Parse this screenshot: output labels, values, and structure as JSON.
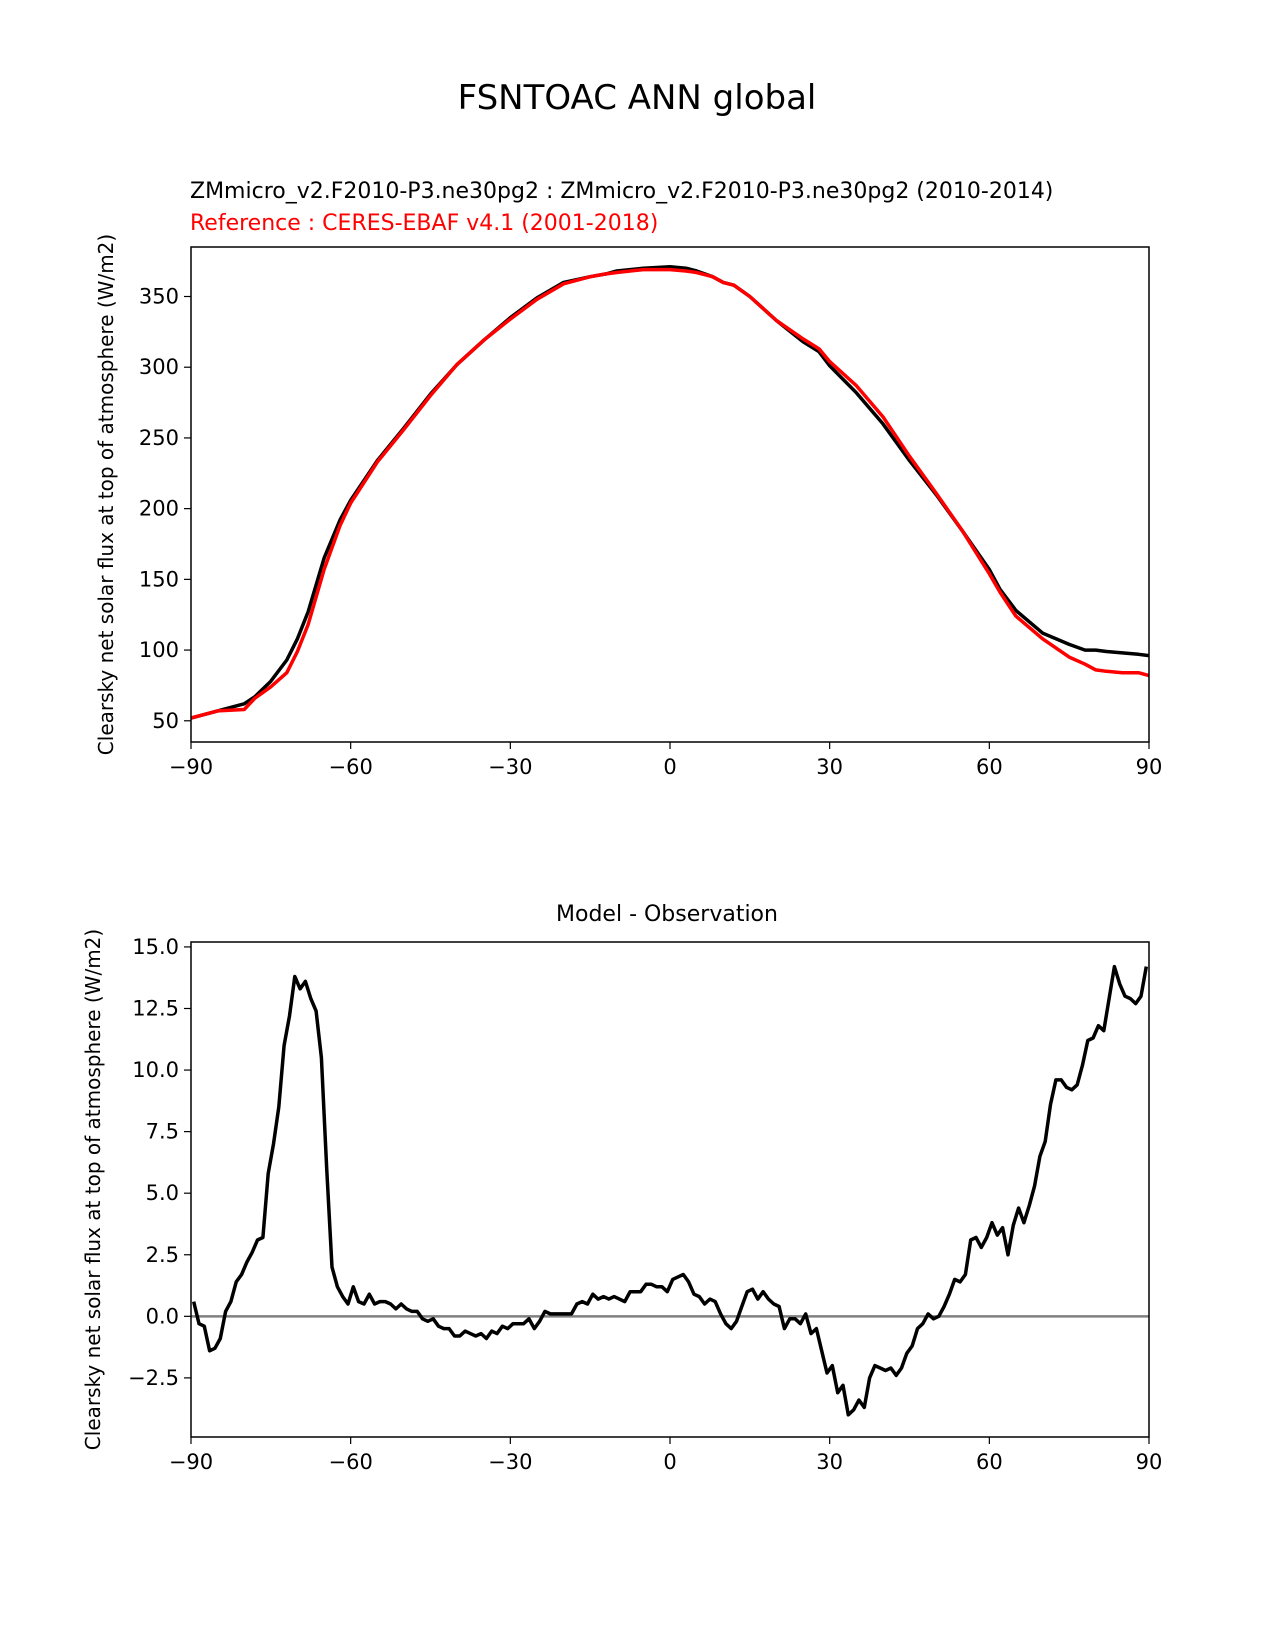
{
  "page_title": "FSNTOAC ANN global",
  "chart_data": [
    {
      "type": "line",
      "title": "ZMmicro_v2.F2010-P3.ne30pg2 : ZMmicro_v2.F2010-P3.ne30pg2 (2010-2014)",
      "subtitle": "Reference : CERES-EBAF v4.1 (2001-2018)",
      "xlabel": "",
      "ylabel": "Clearsky net solar flux at top of atmosphere (W/m2)",
      "xlim": [
        -90,
        90
      ],
      "ylim": [
        35,
        385
      ],
      "xticks": [
        -90,
        -60,
        -30,
        0,
        30,
        60,
        90
      ],
      "xtick_labels": [
        "−90",
        "−60",
        "−30",
        "0",
        "30",
        "60",
        "90"
      ],
      "yticks": [
        50,
        100,
        150,
        200,
        250,
        300,
        350
      ],
      "ytick_labels": [
        "50",
        "100",
        "150",
        "200",
        "250",
        "300",
        "350"
      ],
      "grid": false,
      "series": [
        {
          "color": "#000000",
          "x": [
            -90,
            -85,
            -80,
            -78,
            -75,
            -72,
            -70,
            -68,
            -65,
            -62,
            -60,
            -55,
            -50,
            -45,
            -40,
            -35,
            -30,
            -25,
            -20,
            -15,
            -12,
            -10,
            -5,
            0,
            3,
            5,
            8,
            10,
            12,
            15,
            20,
            25,
            28,
            30,
            35,
            40,
            45,
            50,
            55,
            60,
            62,
            65,
            70,
            75,
            78,
            80,
            82,
            85,
            88,
            90
          ],
          "y": [
            52,
            57,
            62,
            67,
            78,
            93,
            108,
            127,
            165,
            192,
            206,
            234,
            257,
            281,
            302,
            319,
            335,
            349,
            360,
            364,
            366,
            368,
            370,
            371,
            370,
            368,
            364,
            360,
            358,
            350,
            333,
            318,
            311,
            301,
            282,
            260,
            234,
            210,
            184,
            157,
            143,
            128,
            112,
            104,
            100,
            100,
            99,
            98,
            97,
            96
          ]
        },
        {
          "color": "#ff0000",
          "x": [
            -90,
            -85,
            -80,
            -78,
            -75,
            -72,
            -70,
            -68,
            -65,
            -62,
            -60,
            -55,
            -50,
            -45,
            -40,
            -35,
            -30,
            -25,
            -20,
            -15,
            -12,
            -10,
            -5,
            0,
            3,
            5,
            8,
            10,
            12,
            15,
            20,
            25,
            28,
            30,
            35,
            40,
            45,
            50,
            55,
            60,
            62,
            65,
            70,
            75,
            78,
            80,
            82,
            85,
            88,
            90
          ],
          "y": [
            52,
            57,
            58,
            66,
            74,
            84,
            99,
            118,
            157,
            188,
            204,
            233,
            256,
            280,
            302,
            319,
            334,
            348,
            359,
            364,
            366,
            367,
            369,
            369,
            368,
            367,
            364,
            360,
            358,
            350,
            333,
            320,
            313,
            304,
            287,
            265,
            237,
            211,
            184,
            154,
            141,
            124,
            108,
            95,
            90,
            86,
            85,
            84,
            84,
            82
          ]
        }
      ]
    },
    {
      "type": "line",
      "title": "Model - Observation",
      "xlabel": "",
      "ylabel": "Clearsky net solar flux at top of atmosphere (W/m2)",
      "xlim": [
        -90,
        90
      ],
      "ylim": [
        -4.9,
        15.2
      ],
      "xticks": [
        -90,
        -60,
        -30,
        0,
        30,
        60,
        90
      ],
      "xtick_labels": [
        "−90",
        "−60",
        "−30",
        "0",
        "30",
        "60",
        "90"
      ],
      "yticks": [
        -2.5,
        0.0,
        2.5,
        5.0,
        7.5,
        10.0,
        12.5,
        15.0
      ],
      "ytick_labels": [
        "−2.5",
        "0.0",
        "2.5",
        "5.0",
        "7.5",
        "10.0",
        "12.5",
        "15.0"
      ],
      "grid": false,
      "reference_line": {
        "y": 0,
        "color": "#808080"
      },
      "series": [
        {
          "color": "#000000",
          "x": [
            -89.5,
            -88.5,
            -87.5,
            -86.5,
            -85.5,
            -84.5,
            -83.5,
            -82.5,
            -81.5,
            -80.5,
            -79.5,
            -78.5,
            -77.5,
            -76.5,
            -75.5,
            -74.5,
            -73.5,
            -72.5,
            -71.5,
            -70.5,
            -69.5,
            -68.5,
            -67.5,
            -66.5,
            -65.5,
            -64.5,
            -63.5,
            -62.5,
            -61.5,
            -60.5,
            -59.5,
            -58.5,
            -57.5,
            -56.5,
            -55.5,
            -54.5,
            -53.5,
            -52.5,
            -51.5,
            -50.5,
            -49.5,
            -48.5,
            -47.5,
            -46.5,
            -45.5,
            -44.5,
            -43.5,
            -42.5,
            -41.5,
            -40.5,
            -39.5,
            -38.5,
            -37.5,
            -36.5,
            -35.5,
            -34.5,
            -33.5,
            -32.5,
            -31.5,
            -30.5,
            -29.5,
            -28.5,
            -27.5,
            -26.5,
            -25.5,
            -24.5,
            -23.5,
            -22.5,
            -21.5,
            -20.5,
            -19.5,
            -18.5,
            -17.5,
            -16.5,
            -15.5,
            -14.5,
            -13.5,
            -12.5,
            -11.5,
            -10.5,
            -9.5,
            -8.5,
            -7.5,
            -6.5,
            -5.5,
            -4.5,
            -3.5,
            -2.5,
            -1.5,
            -0.5,
            0.5,
            1.5,
            2.5,
            3.5,
            4.5,
            5.5,
            6.5,
            7.5,
            8.5,
            9.5,
            10.5,
            11.5,
            12.5,
            13.5,
            14.5,
            15.5,
            16.5,
            17.5,
            18.5,
            19.5,
            20.5,
            21.5,
            22.5,
            23.5,
            24.5,
            25.5,
            26.5,
            27.5,
            28.5,
            29.5,
            30.5,
            31.5,
            32.5,
            33.5,
            34.5,
            35.5,
            36.5,
            37.5,
            38.5,
            39.5,
            40.5,
            41.5,
            42.5,
            43.5,
            44.5,
            45.5,
            46.5,
            47.5,
            48.5,
            49.5,
            50.5,
            51.5,
            52.5,
            53.5,
            54.5,
            55.5,
            56.5,
            57.5,
            58.5,
            59.5,
            60.5,
            61.5,
            62.5,
            63.5,
            64.5,
            65.5,
            66.5,
            67.5,
            68.5,
            69.5,
            70.5,
            71.5,
            72.5,
            73.5,
            74.5,
            75.5,
            76.5,
            77.5,
            78.5,
            79.5,
            80.5,
            81.5,
            82.5,
            83.5,
            84.5,
            85.5,
            86.5,
            87.5,
            88.5,
            89.5
          ],
          "y": [
            0.6,
            -0.3,
            -0.4,
            -1.4,
            -1.3,
            -0.9,
            0.2,
            0.6,
            1.4,
            1.7,
            2.2,
            2.6,
            3.1,
            3.2,
            5.8,
            7.0,
            8.5,
            11.0,
            12.2,
            13.8,
            13.3,
            13.6,
            12.9,
            12.4,
            10.5,
            6.0,
            2.0,
            1.2,
            0.8,
            0.5,
            1.2,
            0.6,
            0.5,
            0.9,
            0.5,
            0.6,
            0.6,
            0.5,
            0.3,
            0.5,
            0.3,
            0.2,
            0.2,
            -0.1,
            -0.2,
            -0.1,
            -0.4,
            -0.5,
            -0.5,
            -0.8,
            -0.8,
            -0.6,
            -0.7,
            -0.8,
            -0.7,
            -0.9,
            -0.6,
            -0.7,
            -0.4,
            -0.5,
            -0.3,
            -0.3,
            -0.3,
            -0.1,
            -0.5,
            -0.2,
            0.2,
            0.1,
            0.1,
            0.1,
            0.1,
            0.1,
            0.5,
            0.6,
            0.5,
            0.9,
            0.7,
            0.8,
            0.7,
            0.8,
            0.7,
            0.6,
            1.0,
            1.0,
            1.0,
            1.3,
            1.3,
            1.2,
            1.2,
            1.0,
            1.5,
            1.6,
            1.7,
            1.4,
            0.9,
            0.8,
            0.5,
            0.7,
            0.6,
            0.1,
            -0.3,
            -0.5,
            -0.2,
            0.4,
            1.0,
            1.1,
            0.7,
            1.0,
            0.7,
            0.5,
            0.4,
            -0.5,
            -0.1,
            -0.1,
            -0.3,
            0.1,
            -0.7,
            -0.5,
            -1.4,
            -2.3,
            -2.0,
            -3.1,
            -2.8,
            -4.0,
            -3.8,
            -3.4,
            -3.7,
            -2.5,
            -2.0,
            -2.1,
            -2.2,
            -2.1,
            -2.4,
            -2.1,
            -1.5,
            -1.2,
            -0.5,
            -0.3,
            0.1,
            -0.1,
            0.0,
            0.4,
            0.9,
            1.5,
            1.4,
            1.7,
            3.1,
            3.2,
            2.8,
            3.2,
            3.8,
            3.3,
            3.6,
            2.5,
            3.7,
            4.4,
            3.8,
            4.5,
            5.3,
            6.5,
            7.1,
            8.6,
            9.6,
            9.6,
            9.3,
            9.2,
            9.4,
            10.2,
            11.2,
            11.3,
            11.8,
            11.6,
            12.9,
            14.2,
            13.5,
            13.0,
            12.9,
            12.7,
            13.0,
            14.2
          ]
        }
      ]
    }
  ]
}
